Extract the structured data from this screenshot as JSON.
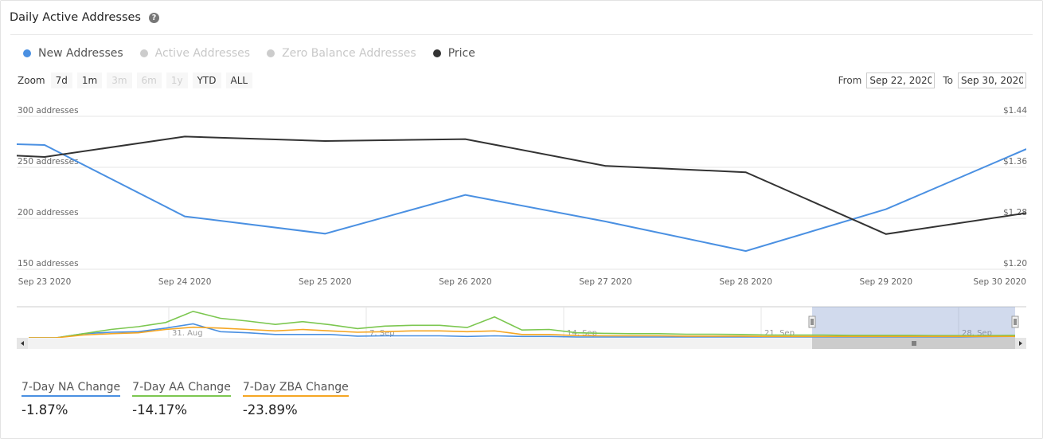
{
  "header": {
    "title": "Daily Active Addresses",
    "help_icon": "?"
  },
  "legend": [
    {
      "label": "New Addresses",
      "color": "#4a90e2",
      "active": true
    },
    {
      "label": "Active Addresses",
      "color": "#cccccc",
      "active": false
    },
    {
      "label": "Zero Balance Addresses",
      "color": "#cccccc",
      "active": false
    },
    {
      "label": "Price",
      "color": "#333333",
      "active": true
    }
  ],
  "zoom": {
    "label": "Zoom",
    "buttons": [
      {
        "label": "7d",
        "enabled": true
      },
      {
        "label": "1m",
        "enabled": true
      },
      {
        "label": "3m",
        "enabled": false
      },
      {
        "label": "6m",
        "enabled": false
      },
      {
        "label": "1y",
        "enabled": false
      },
      {
        "label": "YTD",
        "enabled": true
      },
      {
        "label": "ALL",
        "enabled": true
      }
    ]
  },
  "range": {
    "from_label": "From",
    "from_value": "Sep 22, 2020",
    "to_label": "To",
    "to_value": "Sep 30, 2020"
  },
  "chart_data": {
    "type": "line",
    "x": [
      "Sep 23 2020",
      "Sep 24 2020",
      "Sep 25 2020",
      "Sep 26 2020",
      "Sep 27 2020",
      "Sep 28 2020",
      "Sep 29 2020",
      "Sep 30 2020"
    ],
    "left_axis": {
      "ticks": [
        "300 addresses",
        "250 addresses",
        "200 addresses",
        "150 addresses"
      ],
      "ylim": [
        150,
        300
      ]
    },
    "right_axis": {
      "ticks": [
        "$1.44",
        "$1.36",
        "$1.28",
        "$1.20"
      ],
      "ylim": [
        1.2,
        1.44
      ]
    },
    "series": [
      {
        "name": "New Addresses",
        "axis": "left",
        "color": "#4a90e2",
        "points": [
          [
            "Sep 22 2020",
            272
          ],
          [
            "Sep 23 2020",
            268
          ],
          [
            "Sep 24 2020",
            198
          ],
          [
            "Sep 25 2020",
            181
          ],
          [
            "Sep 26 2020",
            219
          ],
          [
            "Sep 27 2020",
            193
          ],
          [
            "Sep 28 2020",
            164
          ],
          [
            "Sep 29 2020",
            205
          ],
          [
            "Sep 30 2020",
            264
          ]
        ]
      },
      {
        "name": "Price",
        "axis": "right",
        "color": "#333333",
        "points": [
          [
            "Sep 22 2020",
            1.38
          ],
          [
            "Sep 23 2020",
            1.37
          ],
          [
            "Sep 24 2020",
            1.402
          ],
          [
            "Sep 25 2020",
            1.395
          ],
          [
            "Sep 26 2020",
            1.398
          ],
          [
            "Sep 27 2020",
            1.356
          ],
          [
            "Sep 28 2020",
            1.346
          ],
          [
            "Sep 29 2020",
            1.249
          ],
          [
            "Sep 30 2020",
            1.282
          ]
        ]
      }
    ],
    "grid": true
  },
  "navigator": {
    "labels": [
      "31. Aug",
      "7. Sep",
      "14. Sep",
      "21. Sep",
      "28. Sep"
    ],
    "series": [
      {
        "color": "#4a90e2",
        "values": [
          0,
          0,
          0.15,
          0.2,
          0.22,
          0.35,
          0.5,
          0.22,
          0.18,
          0.12,
          0.12,
          0.12,
          0.06,
          0.07,
          0.07,
          0.07,
          0.05,
          0.07,
          0.05,
          0.05,
          0.03,
          0.03,
          0.03,
          0.03,
          0.03,
          0.03,
          0.03,
          0.03,
          0.03,
          0.03,
          0.03,
          0.03,
          0.03,
          0.03,
          0.03,
          0.04,
          0.05
        ]
      },
      {
        "color": "#7cc750",
        "values": [
          0,
          0,
          0.15,
          0.3,
          0.4,
          0.55,
          0.95,
          0.7,
          0.6,
          0.48,
          0.58,
          0.47,
          0.33,
          0.42,
          0.45,
          0.45,
          0.37,
          0.75,
          0.28,
          0.3,
          0.18,
          0.16,
          0.15,
          0.15,
          0.13,
          0.13,
          0.12,
          0.1,
          0.1,
          0.1,
          0.09,
          0.09,
          0.09,
          0.08,
          0.08,
          0.08,
          0.09
        ]
      },
      {
        "color": "#f5a623",
        "values": [
          0,
          0,
          0.1,
          0.15,
          0.18,
          0.3,
          0.38,
          0.35,
          0.3,
          0.25,
          0.3,
          0.25,
          0.2,
          0.22,
          0.25,
          0.25,
          0.22,
          0.25,
          0.12,
          0.12,
          0.08,
          0.07,
          0.07,
          0.07,
          0.06,
          0.06,
          0.06,
          0.05,
          0.05,
          0.05,
          0.05,
          0.05,
          0.05,
          0.05,
          0.05,
          0.05,
          0.05
        ]
      }
    ]
  },
  "stats": [
    {
      "label": "7-Day NA Change",
      "value": "-1.87%",
      "color": "#4a90e2"
    },
    {
      "label": "7-Day AA Change",
      "value": "-14.17%",
      "color": "#7cc750"
    },
    {
      "label": "7-Day ZBA Change",
      "value": "-23.89%",
      "color": "#f5a623"
    }
  ]
}
